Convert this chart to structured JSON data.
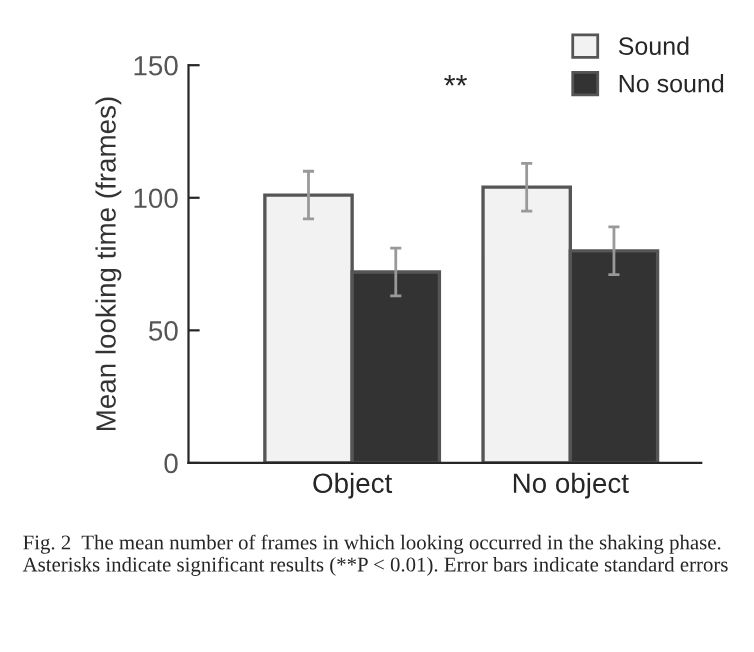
{
  "chart_data": {
    "type": "bar",
    "ylabel": "Mean looking time (frames)",
    "categories": [
      "Object",
      "No object"
    ],
    "series": [
      {
        "name": "Sound",
        "color": "#f2f2f2",
        "values": [
          101,
          104
        ],
        "errors": [
          9,
          9
        ]
      },
      {
        "name": "No sound",
        "color": "#333333",
        "values": [
          72,
          80
        ],
        "errors": [
          9,
          9
        ]
      }
    ],
    "ylim": [
      0,
      150
    ],
    "yticks": [
      0,
      50,
      100,
      150
    ],
    "legend": "top right",
    "grid": false,
    "annotations": [
      "**",
      "Fig. 2  The mean number of frames in which looking occurred in the shaking phase. Asterisks indicate significant results (**P < 0.01). Error bars indicate standard errors"
    ]
  }
}
